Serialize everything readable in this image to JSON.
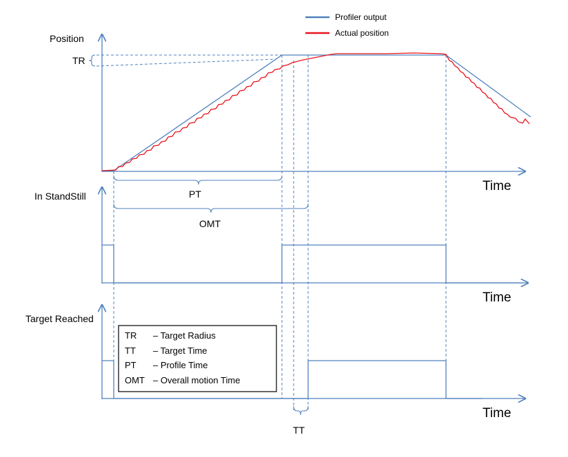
{
  "legend": {
    "profiler": {
      "label": "Profiler output",
      "color": "#4f81bd"
    },
    "actual": {
      "label": "Actual position",
      "color": "#e8141c"
    }
  },
  "panels": {
    "position": {
      "ylabel": "Position",
      "xlabel": "Time"
    },
    "standstill": {
      "ylabel": "In StandStill",
      "xlabel": "Time"
    },
    "target": {
      "ylabel": "Target Reached",
      "xlabel": "Time"
    }
  },
  "annotations": {
    "tr": "TR",
    "pt": "PT",
    "omt": "OMT",
    "tt": "TT"
  },
  "key_box": {
    "rows": [
      {
        "abbr": "TR",
        "desc": "– Target Radius"
      },
      {
        "abbr": "TT",
        "desc": "– Target Time"
      },
      {
        "abbr": "PT",
        "desc": "– Profile Time"
      },
      {
        "abbr": "OMT",
        "desc": "– Overall motion Time"
      }
    ]
  }
}
